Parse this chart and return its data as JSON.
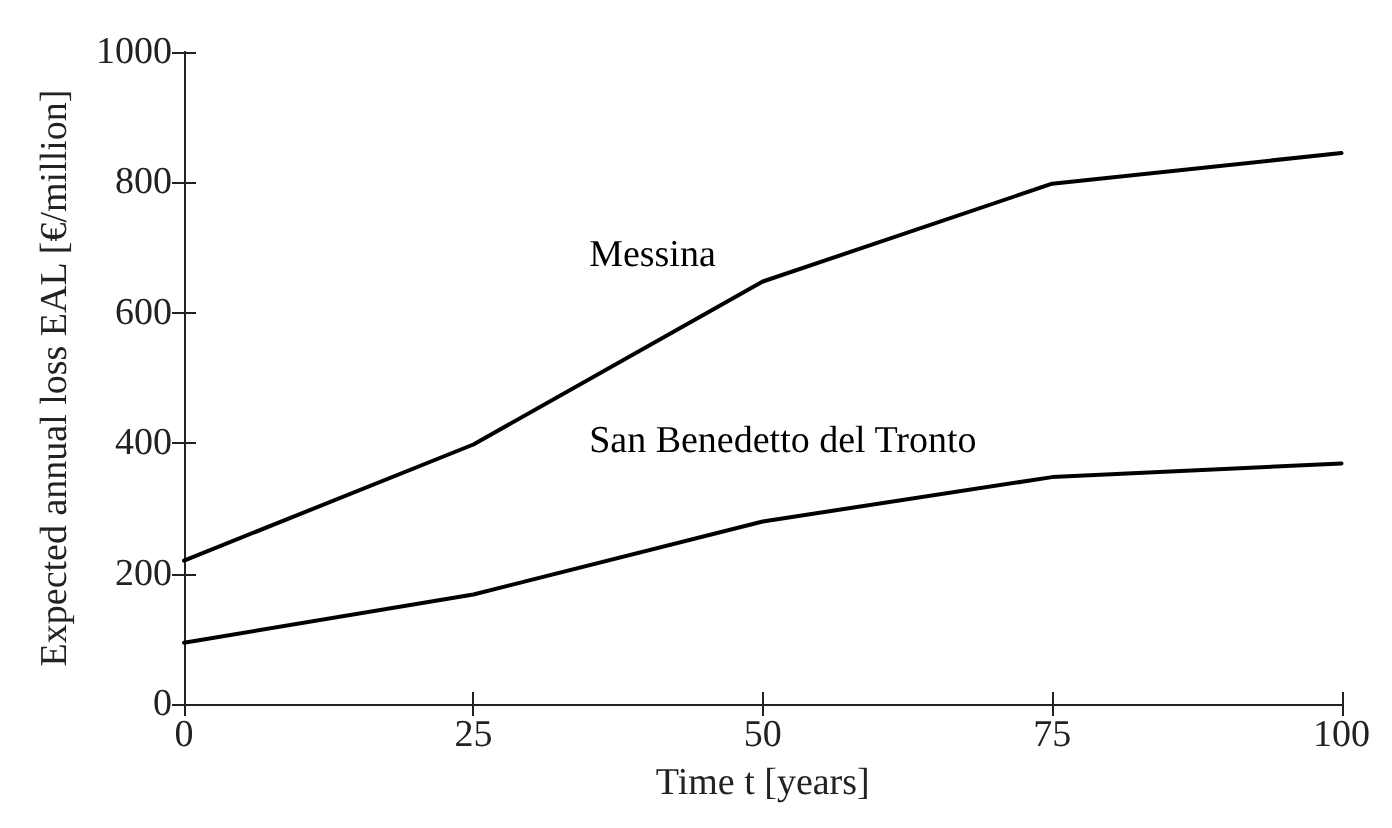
{
  "chart_data": {
    "type": "line",
    "xlabel": "Time t [years]",
    "ylabel": "Expected annual loss EAL [€/million]",
    "x": [
      0,
      25,
      50,
      75,
      100
    ],
    "series": [
      {
        "name": "Messina",
        "color": "#000000",
        "values": [
          220,
          398,
          648,
          798,
          845
        ]
      },
      {
        "name": "San Benedetto del Tronto",
        "color": "#000000",
        "values": [
          94,
          168,
          280,
          348,
          369
        ]
      }
    ],
    "xlim": [
      0,
      100
    ],
    "xticks": [
      0,
      25,
      50,
      75,
      100
    ],
    "ylim": [
      0,
      1000
    ],
    "yticks": [
      0,
      200,
      400,
      600,
      800,
      1000
    ],
    "grid": false,
    "legend": false,
    "marker": "none",
    "line_style": "solid"
  }
}
